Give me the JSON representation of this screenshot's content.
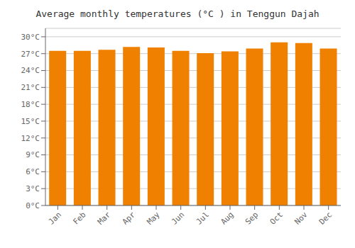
{
  "chart_data": {
    "type": "bar",
    "title": "Average monthly temperatures (°C ) in Tenggun Dajah",
    "categories": [
      "Jan",
      "Feb",
      "Mar",
      "Apr",
      "May",
      "Jun",
      "Jul",
      "Aug",
      "Sep",
      "Oct",
      "Nov",
      "Dec"
    ],
    "values": [
      27.5,
      27.5,
      27.7,
      28.2,
      28.1,
      27.5,
      27.1,
      27.4,
      27.9,
      29.0,
      28.9,
      27.9
    ],
    "color": "#F08000",
    "ylim": [
      0,
      31.5
    ],
    "yticks": [
      {
        "value": 0,
        "label": "0°C"
      },
      {
        "value": 3,
        "label": "3°C"
      },
      {
        "value": 6,
        "label": "6°C"
      },
      {
        "value": 9,
        "label": "9°C"
      },
      {
        "value": 12,
        "label": "12°C"
      },
      {
        "value": 15,
        "label": "15°C"
      },
      {
        "value": 18,
        "label": "18°C"
      },
      {
        "value": 21,
        "label": "21°C"
      },
      {
        "value": 24,
        "label": "24°C"
      },
      {
        "value": 27,
        "label": "27°C"
      },
      {
        "value": 30,
        "label": "30°C"
      }
    ],
    "grid": true
  }
}
